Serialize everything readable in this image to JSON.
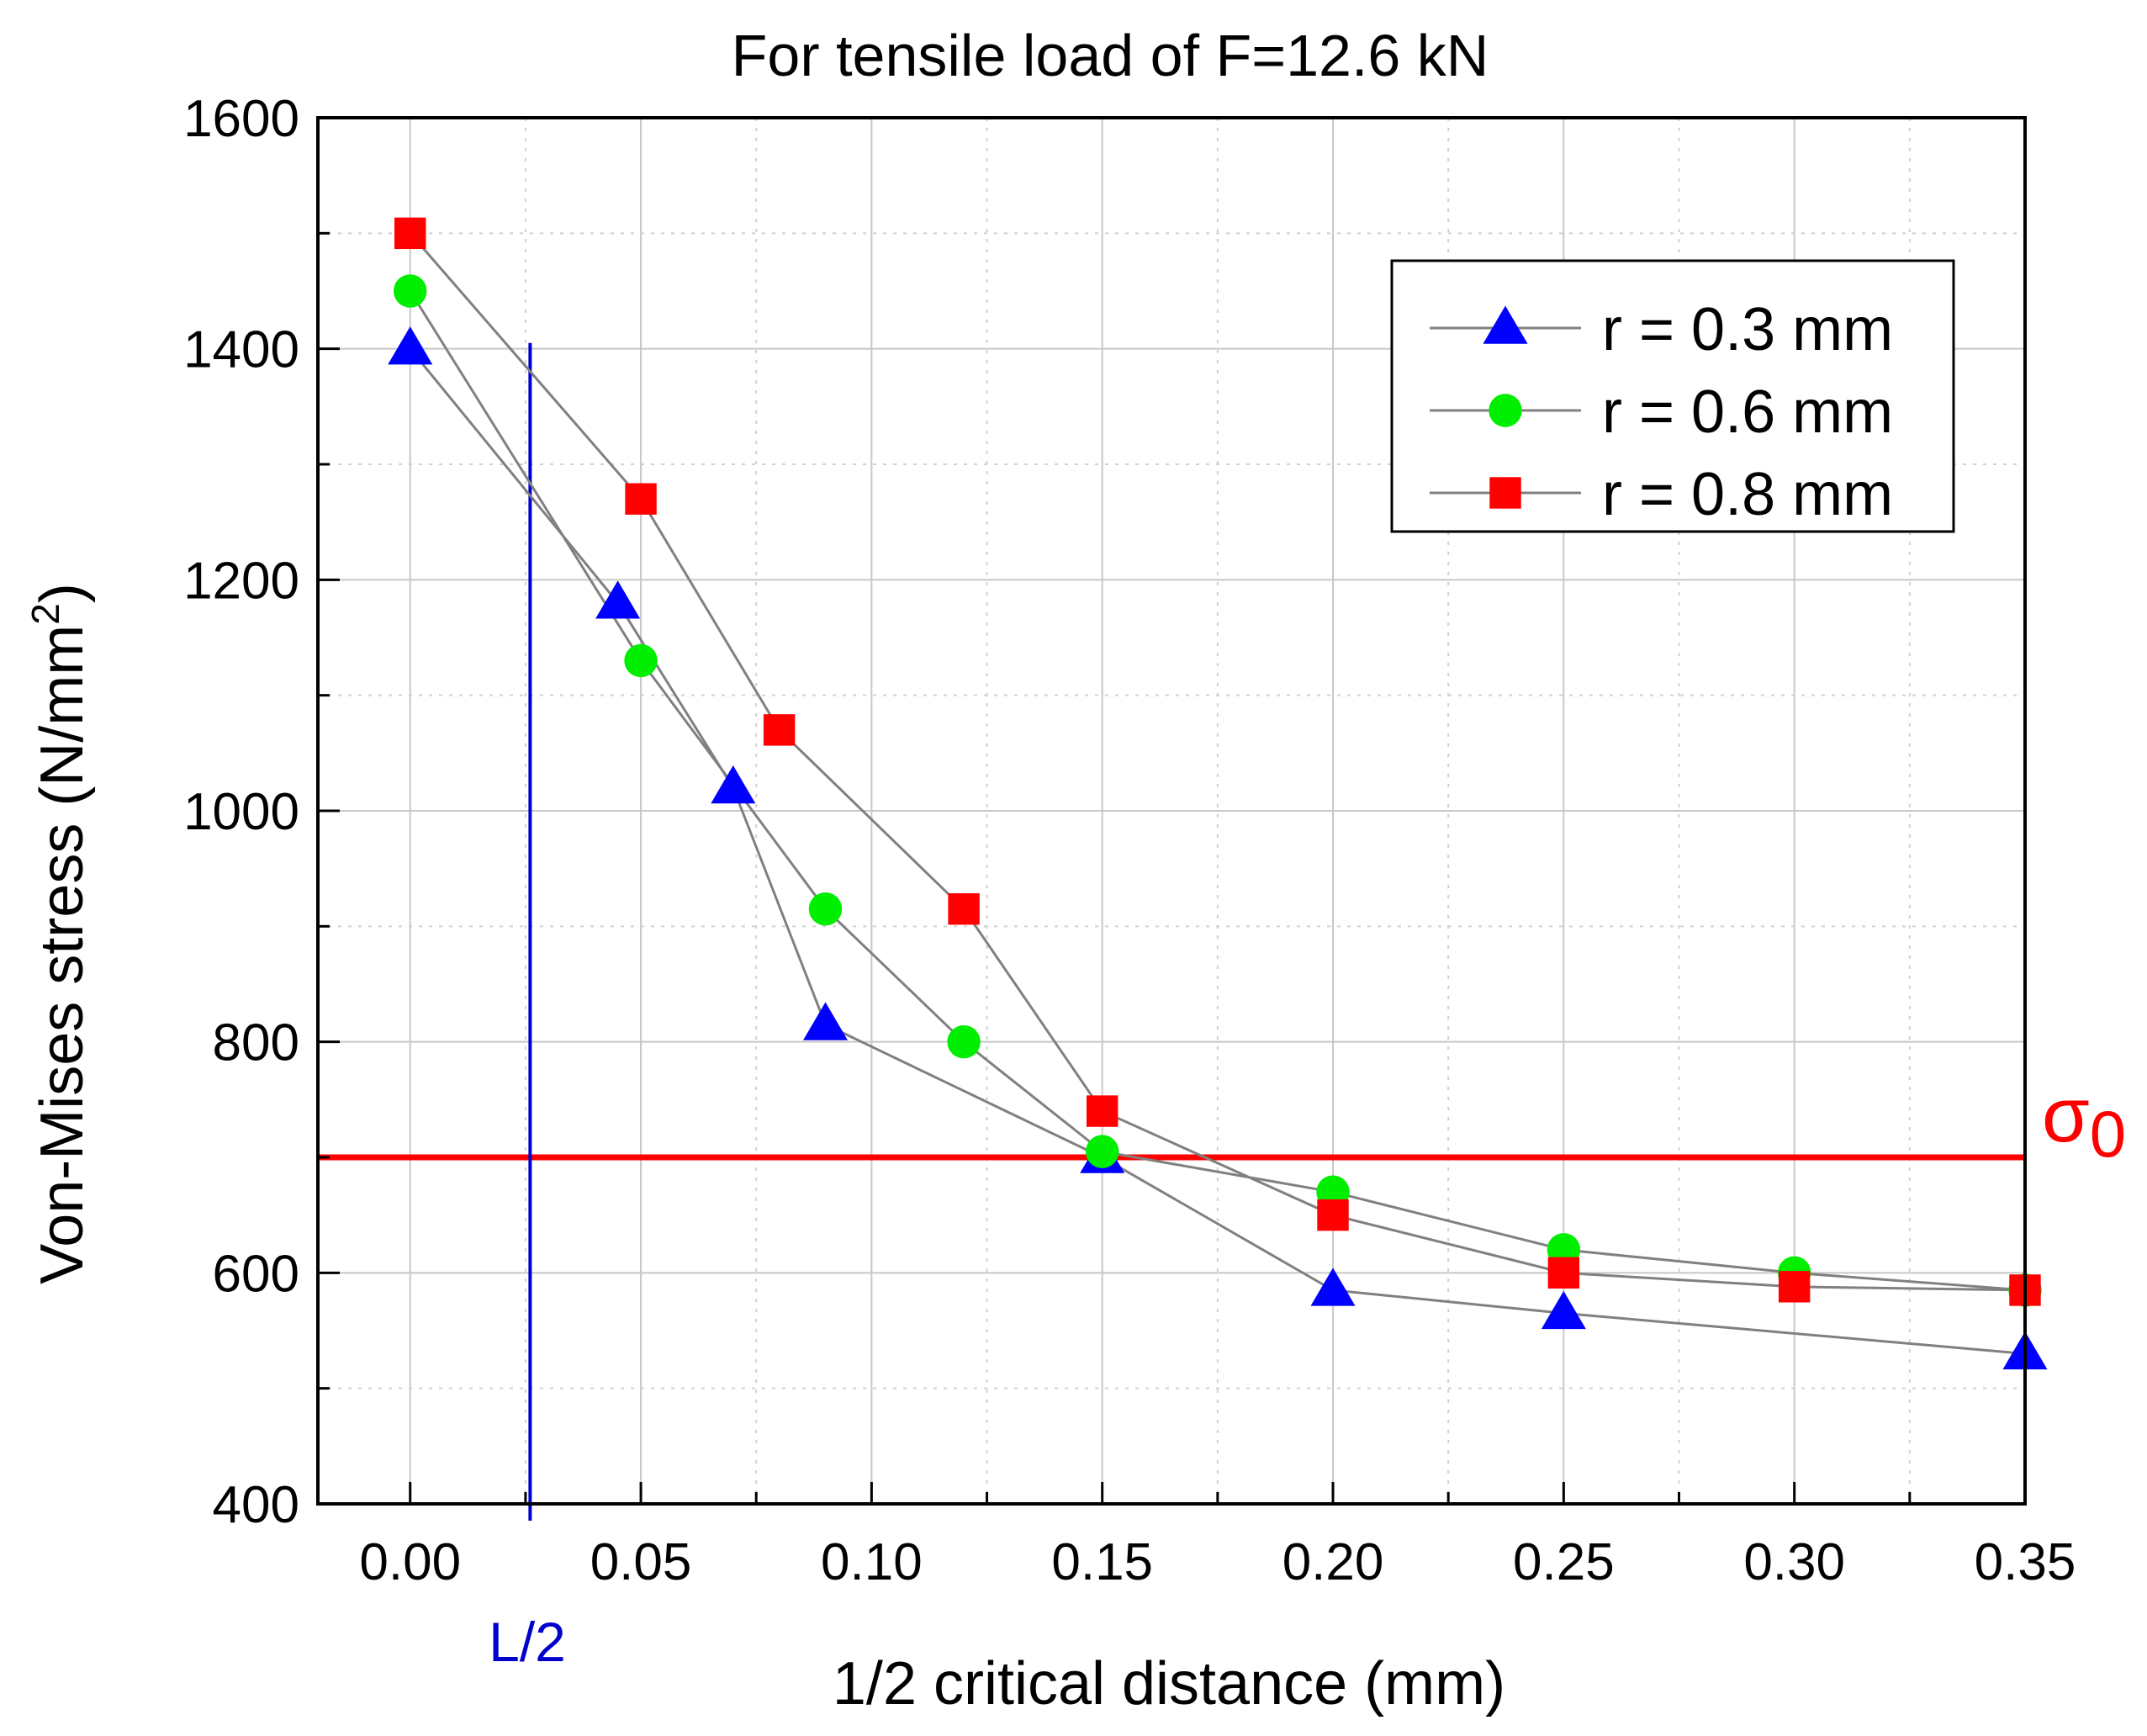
{
  "chart_data": {
    "type": "line",
    "title": "For tensile load of F=12.6 kN",
    "xlabel": "1/2 critical distance (mm)",
    "ylabel_base": "Von-Mises stress (N/mm",
    "ylabel_sup": "2",
    "ylabel_close": ")",
    "xlim": [
      -0.02,
      0.35
    ],
    "ylim": [
      400,
      1600
    ],
    "x_ticks": [
      0.0,
      0.05,
      0.1,
      0.15,
      0.2,
      0.25,
      0.3,
      0.35
    ],
    "x_tick_labels": [
      "0.00",
      "0.05",
      "0.10",
      "0.15",
      "0.20",
      "0.25",
      "0.30",
      "0.35"
    ],
    "y_ticks": [
      400,
      600,
      800,
      1000,
      1200,
      1400,
      1600
    ],
    "y_tick_labels": [
      "400",
      "600",
      "800",
      "1000",
      "1200",
      "1400",
      "1600"
    ],
    "grid": true,
    "legend_position": "top-right",
    "series": [
      {
        "name": "r = 0.3 mm",
        "marker": "triangle",
        "color": "#0000ff",
        "x": [
          0.0,
          0.045,
          0.07,
          0.09,
          0.15,
          0.2,
          0.25,
          0.35
        ],
        "y": [
          1400,
          1180,
          1020,
          815,
          700,
          585,
          565,
          530
        ]
      },
      {
        "name": "r = 0.6 mm",
        "marker": "circle",
        "color": "#00ee00",
        "x": [
          0.0,
          0.05,
          0.09,
          0.12,
          0.15,
          0.2,
          0.25,
          0.3,
          0.35
        ],
        "y": [
          1450,
          1130,
          915,
          800,
          705,
          670,
          620,
          600,
          585
        ]
      },
      {
        "name": "r = 0.8 mm",
        "marker": "square",
        "color": "#ff0000",
        "x": [
          0.0,
          0.05,
          0.08,
          0.12,
          0.15,
          0.2,
          0.25,
          0.3,
          0.35
        ],
        "y": [
          1500,
          1270,
          1070,
          915,
          740,
          650,
          600,
          588,
          585
        ]
      }
    ],
    "reference_lines": [
      {
        "orientation": "horizontal",
        "value": 700,
        "label": "σ",
        "label_sub": "0",
        "color": "#ff0000"
      },
      {
        "orientation": "vertical",
        "value": 0.026,
        "label": "L/2",
        "color": "#0000cc"
      }
    ],
    "connector_color": "#808080"
  }
}
